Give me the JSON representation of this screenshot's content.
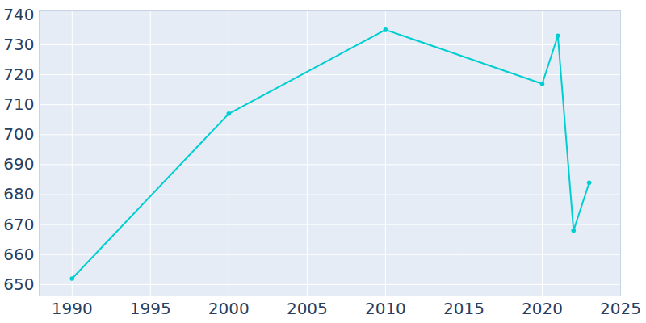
{
  "chart_data": {
    "type": "line",
    "x": [
      1990,
      2000,
      2010,
      2020,
      2021,
      2022,
      2023
    ],
    "values": [
      652,
      707,
      735,
      717,
      733,
      668,
      684
    ],
    "color": "#00ced1",
    "marker": "circle",
    "xlim": [
      1987.9,
      2025
    ],
    "xticks": [
      1990,
      1995,
      2000,
      2005,
      2010,
      2015,
      2020,
      2025
    ],
    "ylim": [
      646.2,
      741.3
    ],
    "yticks": [
      650,
      660,
      670,
      680,
      690,
      700,
      710,
      720,
      730,
      740
    ],
    "grid": true
  }
}
